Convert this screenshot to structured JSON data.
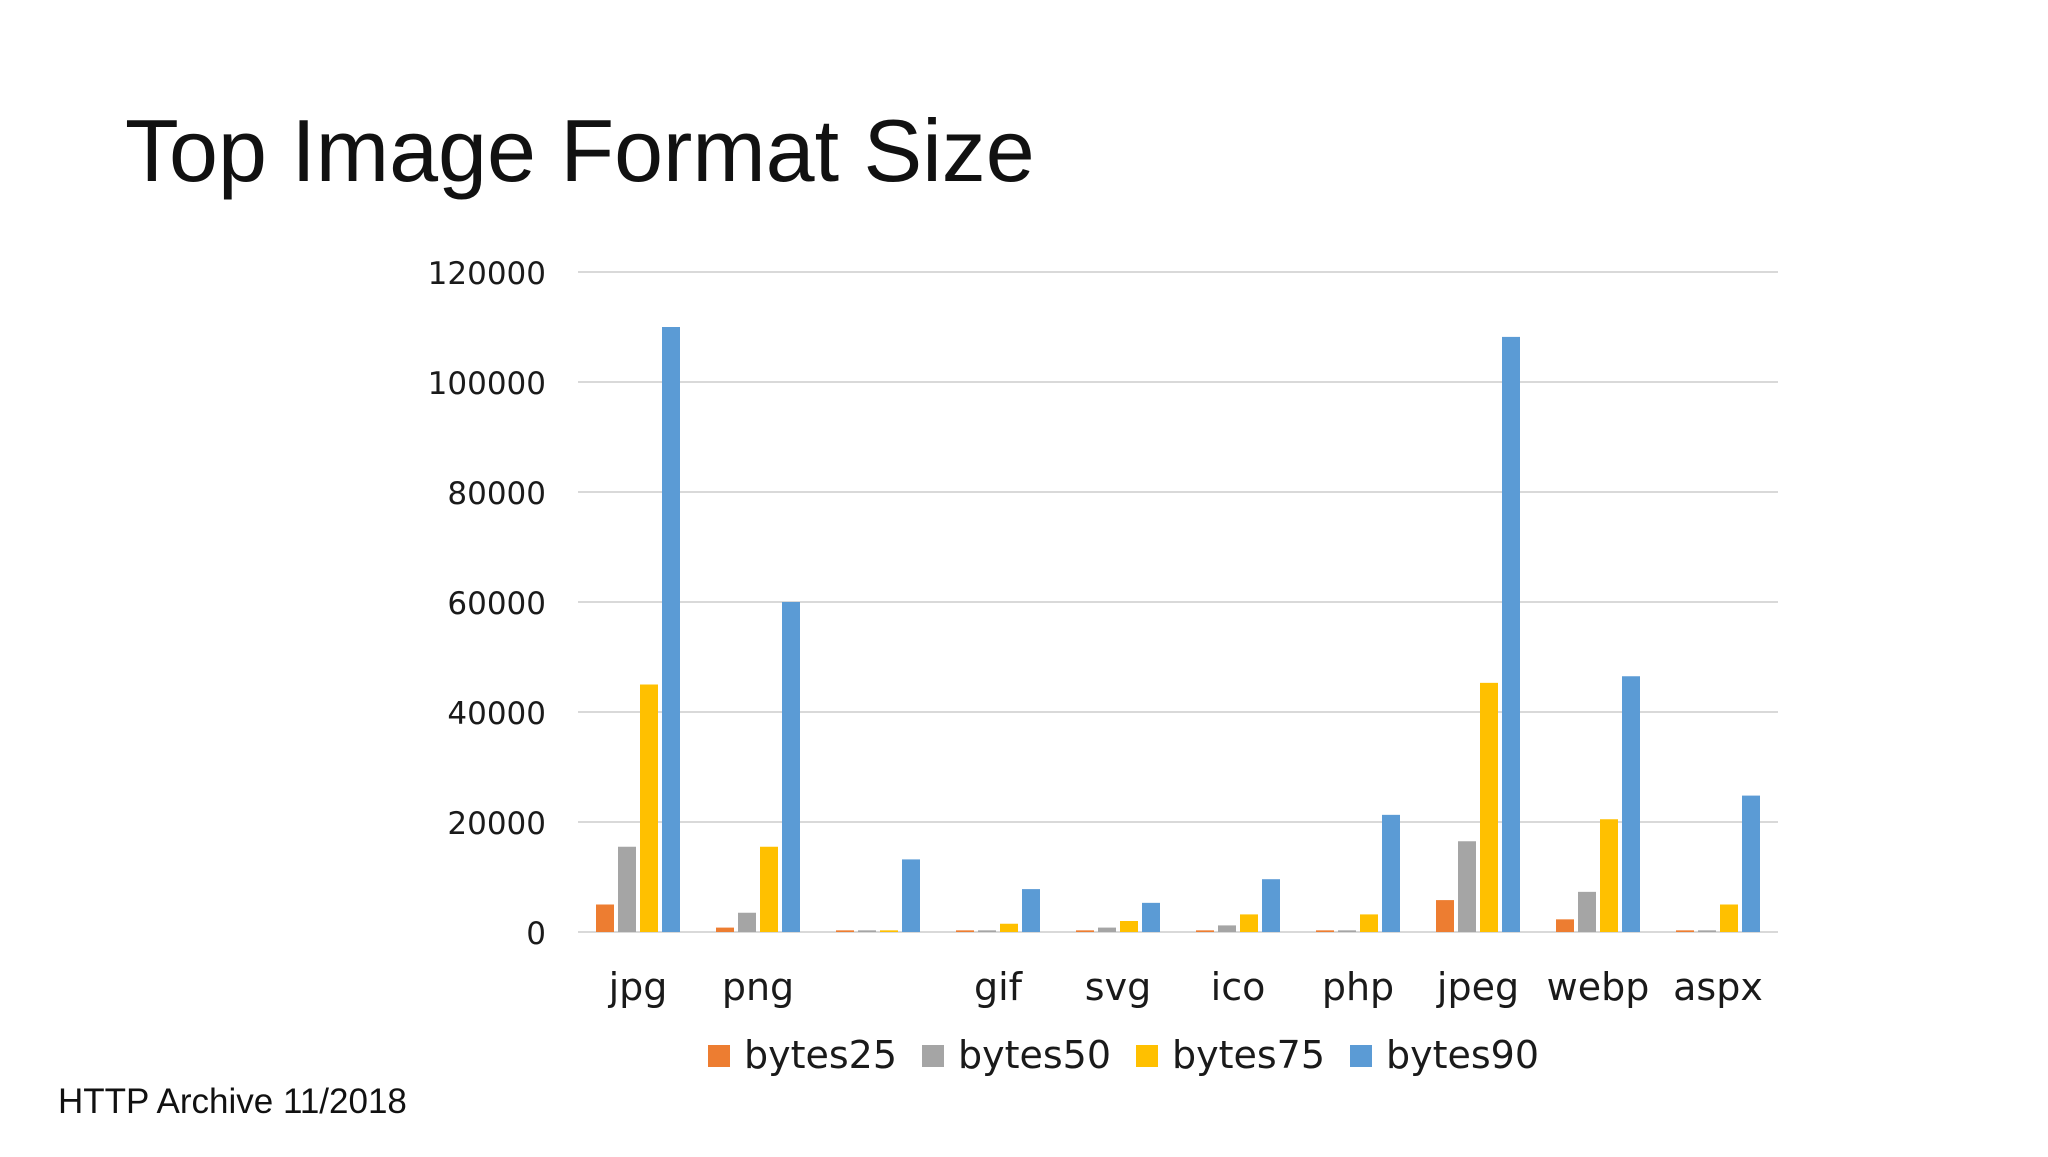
{
  "slide": {
    "title": "Top Image Format Size",
    "footer": "HTTP Archive 11/2018"
  },
  "colors": {
    "bytes25": "#ED7D31",
    "bytes50": "#A5A5A5",
    "bytes75": "#FFC000",
    "bytes90": "#5B9BD5",
    "grid": "#D9D9D9",
    "axis_text": "#1a1a1a"
  },
  "chart_data": {
    "type": "bar",
    "title": "",
    "xlabel": "",
    "ylabel": "",
    "ylim": [
      0,
      120000
    ],
    "yticks": [
      "0",
      "20000",
      "40000",
      "60000",
      "80000",
      "100000",
      "120000"
    ],
    "categories": [
      "jpg",
      "png",
      "",
      "gif",
      "svg",
      "ico",
      "php",
      "jpeg",
      "webp",
      "aspx"
    ],
    "series": [
      {
        "name": "bytes25",
        "values": [
          5000,
          800,
          300,
          300,
          300,
          300,
          300,
          5800,
          2300,
          300
        ]
      },
      {
        "name": "bytes50",
        "values": [
          15500,
          3500,
          300,
          300,
          800,
          1200,
          300,
          16500,
          7300,
          300
        ]
      },
      {
        "name": "bytes75",
        "values": [
          45000,
          15500,
          300,
          1500,
          2000,
          3200,
          3200,
          45300,
          20500,
          5000
        ]
      },
      {
        "name": "bytes90",
        "values": [
          110000,
          60000,
          13200,
          7800,
          5300,
          9600,
          21300,
          108200,
          46500,
          24800
        ]
      }
    ],
    "grid": true,
    "legend": "bottom"
  }
}
